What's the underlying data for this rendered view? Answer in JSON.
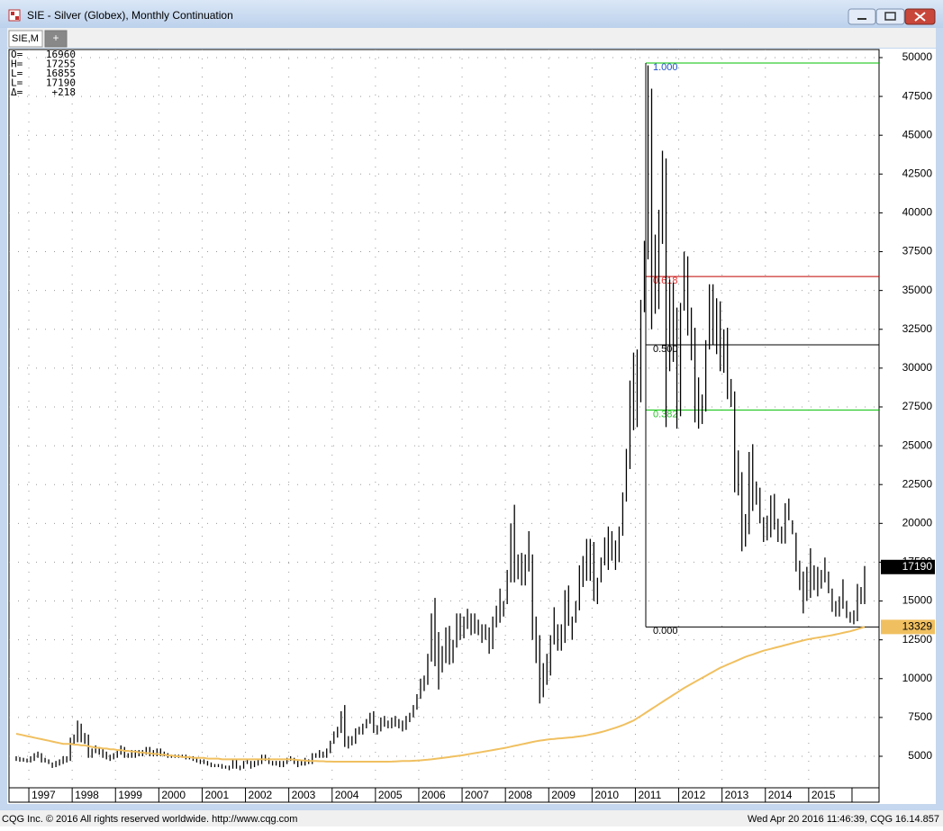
{
  "window": {
    "title": "SIE - Silver (Globex), Monthly Continuation",
    "tab": "SIE,M",
    "tab_add": "+",
    "footer_left": "CQG Inc. © 2016 All rights reserved worldwide. http://www.cqg.com",
    "footer_right": "Wed Apr 20 2016 11:46:39, CQG 16.14.857"
  },
  "info": [
    {
      "label": "O=",
      "value": 16960
    },
    {
      "label": "H=",
      "value": 17255
    },
    {
      "label": "L=",
      "value": 16855
    },
    {
      "label": "L=",
      "value": 17190
    },
    {
      "label": "Δ=",
      "value": "+218"
    }
  ],
  "chart_data": {
    "type": "ohlc",
    "grid": true,
    "ylim": [
      2970,
      50520
    ],
    "yticks": [
      5000,
      7500,
      10000,
      12500,
      15000,
      17500,
      20000,
      22500,
      25000,
      27500,
      30000,
      32500,
      35000,
      37500,
      40000,
      42500,
      45000,
      47500,
      50000
    ],
    "last_price": 17190,
    "categories": [
      null,
      null,
      null,
      null,
      "1997",
      null,
      null,
      null,
      null,
      null,
      null,
      null,
      null,
      null,
      null,
      null,
      "1998",
      null,
      null,
      null,
      null,
      null,
      null,
      null,
      null,
      null,
      null,
      null,
      "1999",
      null,
      null,
      null,
      null,
      null,
      null,
      null,
      null,
      null,
      null,
      null,
      "2000",
      null,
      null,
      null,
      null,
      null,
      null,
      null,
      null,
      null,
      null,
      null,
      "2001",
      null,
      null,
      null,
      null,
      null,
      null,
      null,
      null,
      null,
      null,
      null,
      "2002",
      null,
      null,
      null,
      null,
      null,
      null,
      null,
      null,
      null,
      null,
      null,
      "2003",
      null,
      null,
      null,
      null,
      null,
      null,
      null,
      null,
      null,
      null,
      null,
      "2004",
      null,
      null,
      null,
      null,
      null,
      null,
      null,
      null,
      null,
      null,
      null,
      "2005",
      null,
      null,
      null,
      null,
      null,
      null,
      null,
      null,
      null,
      null,
      null,
      "2006",
      null,
      null,
      null,
      null,
      null,
      null,
      null,
      null,
      null,
      null,
      null,
      "2007",
      null,
      null,
      null,
      null,
      null,
      null,
      null,
      null,
      null,
      null,
      null,
      "2008",
      null,
      null,
      null,
      null,
      null,
      null,
      null,
      null,
      null,
      null,
      null,
      "2009",
      null,
      null,
      null,
      null,
      null,
      null,
      null,
      null,
      null,
      null,
      null,
      "2010",
      null,
      null,
      null,
      null,
      null,
      null,
      null,
      null,
      null,
      null,
      null,
      "2011",
      null,
      null,
      null,
      null,
      null,
      null,
      null,
      null,
      null,
      null,
      null,
      "2012",
      null,
      null,
      null,
      null,
      null,
      null,
      null,
      null,
      null,
      null,
      null,
      "2013",
      null,
      null,
      null,
      null,
      null,
      null,
      null,
      null,
      null,
      null,
      null,
      "2014",
      null,
      null,
      null,
      null,
      null,
      null,
      null,
      null,
      null,
      null,
      null,
      "2015",
      null,
      null,
      null,
      null,
      null,
      null,
      null,
      null,
      null,
      null,
      null,
      null,
      null,
      null,
      null
    ],
    "high": [
      5000,
      4950,
      4900,
      4850,
      5000,
      5200,
      5300,
      5200,
      4900,
      4800,
      4600,
      4700,
      4800,
      5000,
      5000,
      6200,
      6400,
      7300,
      7100,
      6500,
      6400,
      5500,
      5700,
      5600,
      5500,
      5300,
      5100,
      5200,
      5400,
      5700,
      5600,
      5200,
      5400,
      5400,
      5400,
      5400,
      5600,
      5600,
      5400,
      5500,
      5500,
      5300,
      5200,
      5100,
      5100,
      5100,
      5100,
      5100,
      5000,
      5000,
      4900,
      4800,
      4800,
      4700,
      4600,
      4500,
      4500,
      4500,
      4400,
      4400,
      4800,
      4800,
      4400,
      4700,
      4800,
      4700,
      4700,
      4800,
      5100,
      5100,
      4900,
      4700,
      4700,
      4700,
      4700,
      4900,
      5000,
      4900,
      4800,
      4700,
      4900,
      4800,
      5200,
      5200,
      5400,
      5300,
      5500,
      6000,
      6600,
      6900,
      7900,
      8300,
      6300,
      6300,
      6800,
      6900,
      7100,
      7400,
      7800,
      7900,
      7000,
      7500,
      7600,
      7300,
      7500,
      7600,
      7400,
      7300,
      7600,
      7800,
      8300,
      9000,
      10000,
      10200,
      11600,
      14200,
      15200,
      13000,
      12100,
      13300,
      13400,
      12500,
      14200,
      14200,
      14000,
      14500,
      14200,
      14200,
      13800,
      13500,
      13500,
      13300,
      14000,
      14700,
      15800,
      15000,
      17000,
      20000,
      21200,
      18000,
      18100,
      18000,
      19500,
      18000,
      14000,
      12800,
      11000,
      11600,
      12800,
      14600,
      13500,
      13500,
      15700,
      16000,
      14000,
      15000,
      17300,
      17900,
      19000,
      19000,
      18800,
      16500,
      17800,
      19100,
      19800,
      19500,
      18900,
      19800,
      22000,
      24800,
      29200,
      31000,
      31200,
      34400,
      38200,
      49500,
      48000,
      38600,
      40200,
      44000,
      43500,
      35700,
      35500,
      33900,
      34200,
      37500,
      37200,
      33900,
      32600,
      29400,
      28300,
      31800,
      35400,
      35400,
      34500,
      34300,
      32500,
      32600,
      29300,
      28500,
      24700,
      23300,
      20600,
      24600,
      25100,
      22700,
      22300,
      20400,
      20500,
      21800,
      21900,
      20300,
      19800,
      21300,
      21600,
      20200,
      19400,
      17600,
      16900,
      17200,
      18400,
      17300,
      17200,
      17000,
      17800,
      16900,
      15800,
      15000,
      15300,
      16400,
      15000,
      14300,
      14400,
      16100,
      15900,
      17255
    ],
    "low": [
      4700,
      4650,
      4650,
      4600,
      4600,
      4700,
      4900,
      4600,
      4600,
      4500,
      4250,
      4300,
      4400,
      4500,
      4600,
      4700,
      5800,
      5900,
      5900,
      5800,
      4900,
      4900,
      5200,
      5100,
      4900,
      4800,
      4700,
      4800,
      4900,
      5100,
      4900,
      4900,
      4900,
      4900,
      5000,
      5000,
      5100,
      5000,
      5000,
      5000,
      5000,
      5000,
      4900,
      4900,
      4900,
      4900,
      4900,
      4800,
      4800,
      4700,
      4600,
      4500,
      4500,
      4400,
      4300,
      4300,
      4300,
      4200,
      4200,
      4100,
      4200,
      4200,
      4100,
      4200,
      4500,
      4200,
      4300,
      4400,
      4500,
      4700,
      4500,
      4400,
      4400,
      4300,
      4300,
      4500,
      4700,
      4500,
      4300,
      4400,
      4400,
      4500,
      4500,
      4900,
      4900,
      4900,
      4900,
      5200,
      5800,
      6200,
      6500,
      5600,
      5500,
      5700,
      5800,
      6400,
      6400,
      6800,
      7100,
      6500,
      6400,
      6600,
      6900,
      6800,
      6800,
      6900,
      6800,
      6600,
      6700,
      7200,
      7500,
      8000,
      8700,
      9200,
      9600,
      11100,
      10800,
      9300,
      10400,
      11000,
      10900,
      11000,
      12000,
      12500,
      12600,
      13200,
      12800,
      12900,
      12800,
      12300,
      12500,
      11600,
      11900,
      13300,
      13600,
      14000,
      14800,
      16200,
      16200,
      16400,
      16000,
      16000,
      16900,
      12500,
      11000,
      8400,
      8800,
      9600,
      10200,
      12200,
      11800,
      11800,
      12300,
      13400,
      12500,
      13600,
      14400,
      15900,
      16300,
      16300,
      15000,
      14800,
      16200,
      17300,
      17000,
      17600,
      17000,
      17500,
      19200,
      21400,
      23500,
      26000,
      26200,
      27800,
      33600,
      37000,
      32500,
      33500,
      33800,
      38000,
      26200,
      29800,
      30400,
      26100,
      26900,
      33700,
      32100,
      30500,
      26500,
      26100,
      26400,
      27200,
      31200,
      31500,
      30900,
      29800,
      29700,
      28000,
      27500,
      22000,
      21800,
      18200,
      18500,
      19300,
      20800,
      21200,
      20000,
      18800,
      18900,
      19100,
      19600,
      18800,
      18700,
      18700,
      20200,
      19300,
      16900,
      15700,
      14200,
      15000,
      15200,
      15700,
      15300,
      15800,
      16200,
      15500,
      14300,
      14000,
      14000,
      14500,
      13900,
      13600,
      13500,
      13700,
      14800,
      14800
    ],
    "ma_color": "#f0c060",
    "ma": [
      6450,
      6400,
      6350,
      6300,
      6250,
      6200,
      6150,
      6100,
      6050,
      6000,
      5950,
      5900,
      5850,
      5800,
      5800,
      5800,
      5750,
      5750,
      5700,
      5700,
      5650,
      5600,
      5550,
      5550,
      5500,
      5500,
      5450,
      5450,
      5400,
      5400,
      5350,
      5350,
      5300,
      5300,
      5250,
      5250,
      5200,
      5200,
      5150,
      5150,
      5100,
      5100,
      5050,
      5050,
      5000,
      5000,
      4950,
      4950,
      4950,
      4900,
      4900,
      4900,
      4900,
      4850,
      4850,
      4850,
      4850,
      4800,
      4800,
      4800,
      4800,
      4800,
      4800,
      4800,
      4800,
      4800,
      4800,
      4800,
      4800,
      4800,
      4800,
      4800,
      4800,
      4800,
      4800,
      4800,
      4800,
      4780,
      4760,
      4740,
      4720,
      4700,
      4700,
      4700,
      4680,
      4680,
      4660,
      4660,
      4650,
      4650,
      4650,
      4650,
      4650,
      4650,
      4650,
      4650,
      4650,
      4650,
      4650,
      4650,
      4650,
      4650,
      4650,
      4650,
      4660,
      4670,
      4680,
      4690,
      4700,
      4700,
      4710,
      4720,
      4740,
      4760,
      4780,
      4800,
      4830,
      4860,
      4890,
      4920,
      4950,
      4980,
      5010,
      5040,
      5080,
      5120,
      5160,
      5200,
      5240,
      5280,
      5320,
      5360,
      5400,
      5440,
      5480,
      5520,
      5570,
      5620,
      5670,
      5720,
      5770,
      5820,
      5870,
      5920,
      5970,
      6010,
      6040,
      6070,
      6100,
      6120,
      6140,
      6160,
      6180,
      6200,
      6220,
      6250,
      6280,
      6310,
      6350,
      6400,
      6450,
      6500,
      6560,
      6620,
      6690,
      6760,
      6840,
      6920,
      7000,
      7100,
      7200,
      7300,
      7450,
      7600,
      7750,
      7900,
      8050,
      8200,
      8350,
      8500,
      8650,
      8800,
      8950,
      9100,
      9250,
      9400,
      9530,
      9660,
      9790,
      9920,
      10050,
      10180,
      10310,
      10440,
      10570,
      10700,
      10800,
      10900,
      11000,
      11100,
      11200,
      11300,
      11400,
      11480,
      11560,
      11640,
      11720,
      11800,
      11860,
      11920,
      11980,
      12040,
      12100,
      12160,
      12220,
      12280,
      12340,
      12400,
      12460,
      12520,
      12560,
      12600,
      12640,
      12680,
      12720,
      12760,
      12800,
      12850,
      12900,
      12950,
      13000,
      13050,
      13120,
      13190,
      13260,
      13329
    ],
    "fib_levels": [
      {
        "label": "1.000",
        "value": 49650,
        "color": "#00c000",
        "text_color": "#1e50c8"
      },
      {
        "label": "0.618",
        "value": 35900,
        "color": "#c00000",
        "text_color": "#e03030"
      },
      {
        "label": "0.500",
        "value": 31500,
        "color": "#000000",
        "text_color": "#000000"
      },
      {
        "label": "0.382",
        "value": 27300,
        "color": "#00c000",
        "text_color": "#30c030"
      },
      {
        "label": "0.000",
        "value": 13330,
        "color": "#000000",
        "text_color": "#000000"
      }
    ]
  }
}
